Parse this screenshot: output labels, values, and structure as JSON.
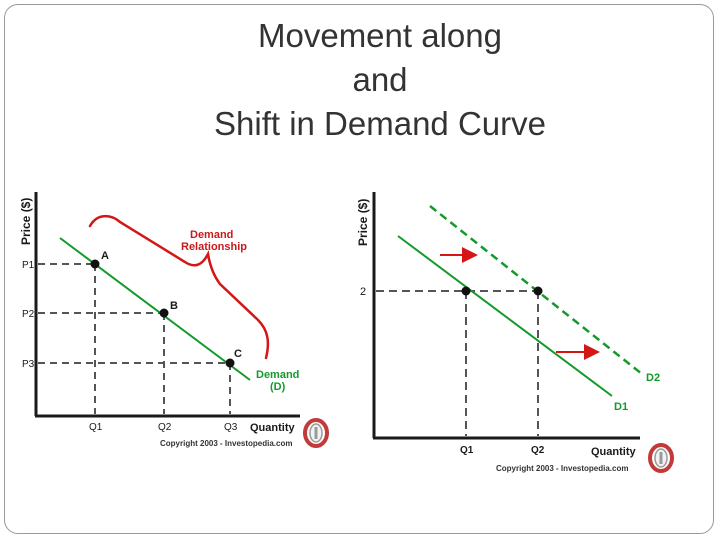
{
  "slide": {
    "title_lines": [
      "Movement along",
      "and",
      "Shift in Demand Curve"
    ]
  },
  "colors": {
    "curve": "#139a2b",
    "bracket": "#d41616",
    "label_red": "#c81a1a",
    "label_green": "#139a2b",
    "axis": "#1a1a1a",
    "guide": "#555555",
    "logo_red": "#c23a3a",
    "logo_grey": "#9a9a9a"
  },
  "diagram_left": {
    "y_axis_label": "Price ($)",
    "x_axis_label": "Quantity",
    "price_ticks": [
      "P1",
      "P2",
      "P3"
    ],
    "quantity_ticks": [
      "Q1",
      "Q2",
      "Q3"
    ],
    "points": [
      "A",
      "B",
      "C"
    ],
    "bracket_label": [
      "Demand",
      "Relationship"
    ],
    "curve_label": [
      "Demand",
      "(D)"
    ],
    "copyright": "Copyright 2003 - Investopedia.com",
    "logo_icon": "investopedia-logo-icon"
  },
  "diagram_right": {
    "y_axis_label": "Price ($)",
    "x_axis_label": "Quantity",
    "price_tick": "2",
    "quantity_ticks": [
      "Q1",
      "Q2"
    ],
    "curve_labels": [
      "D1",
      "D2"
    ],
    "copyright": "Copyright 2003 - Investopedia.com",
    "logo_icon": "investopedia-logo-icon"
  }
}
